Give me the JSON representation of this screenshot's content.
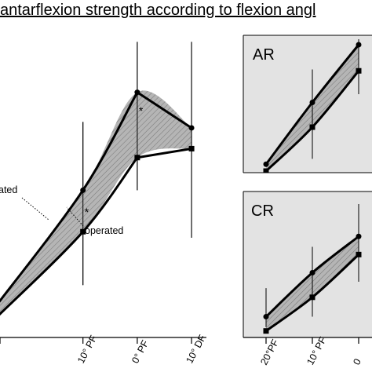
{
  "title": "antarflexion strength according to flexion angl",
  "colors": {
    "band_fill": "#b5b5b5",
    "panel_bg": "#e3e3e3",
    "line": "#000000"
  },
  "chart_data": [
    {
      "id": "main",
      "type": "line",
      "title": "",
      "categories": [
        "10° PF",
        "0° PF",
        "10° DF"
      ],
      "x": [
        10,
        0,
        -10
      ],
      "xlim": [
        26,
        -11
      ],
      "ylim": [
        0,
        1
      ],
      "grid": false,
      "series": [
        {
          "name": "ated",
          "marker": "circle",
          "x": [
            26,
            10,
            0,
            -10
          ],
          "y": [
            0.08,
            0.47,
            0.8,
            0.68
          ]
        },
        {
          "name": "operated",
          "marker": "square",
          "x": [
            26,
            10,
            0,
            -10
          ],
          "y": [
            0.04,
            0.33,
            0.58,
            0.61
          ]
        }
      ],
      "error_bars": [
        {
          "x": 10,
          "low": 0.15,
          "high": 0.7
        },
        {
          "x": 0,
          "low": 0.47,
          "high": 0.97
        },
        {
          "x": -10,
          "low": 0.31,
          "high": 0.97
        }
      ],
      "annotations": [
        {
          "text": "*",
          "x": 0,
          "y": 0.72
        },
        {
          "text": "*",
          "x": 10,
          "y": 0.4
        }
      ],
      "labels": {
        "uninjured": "ated",
        "operated": "operated"
      }
    },
    {
      "id": "AR",
      "type": "line",
      "title": "AR",
      "x": [
        20,
        10,
        0
      ],
      "xlim": [
        20,
        0
      ],
      "ylim": [
        0,
        1
      ],
      "series": [
        {
          "marker": "circle",
          "x": [
            20,
            10,
            0
          ],
          "y": [
            0.09,
            0.54,
            0.96
          ]
        },
        {
          "marker": "square",
          "x": [
            20,
            10,
            0
          ],
          "y": [
            0.04,
            0.36,
            0.77
          ]
        }
      ],
      "error_bars": [
        {
          "x": 10,
          "low": 0.13,
          "high": 0.78
        },
        {
          "x": 0,
          "low": 0.6,
          "high": 1.0
        }
      ]
    },
    {
      "id": "CR",
      "type": "line",
      "title": "CR",
      "categories": [
        "20°PF",
        "10° PF",
        "0"
      ],
      "x": [
        20,
        10,
        0
      ],
      "xlim": [
        20,
        0
      ],
      "ylim": [
        0,
        1
      ],
      "series": [
        {
          "marker": "circle",
          "x": [
            20,
            10,
            0
          ],
          "y": [
            0.13,
            0.47,
            0.75
          ]
        },
        {
          "marker": "square",
          "x": [
            20,
            10,
            0
          ],
          "y": [
            0.02,
            0.28,
            0.61
          ]
        }
      ],
      "error_bars": [
        {
          "x": 20,
          "low": 0.05,
          "high": 0.35
        },
        {
          "x": 10,
          "low": 0.13,
          "high": 0.67
        },
        {
          "x": 0,
          "low": 0.4,
          "high": 1.0
        }
      ]
    }
  ]
}
